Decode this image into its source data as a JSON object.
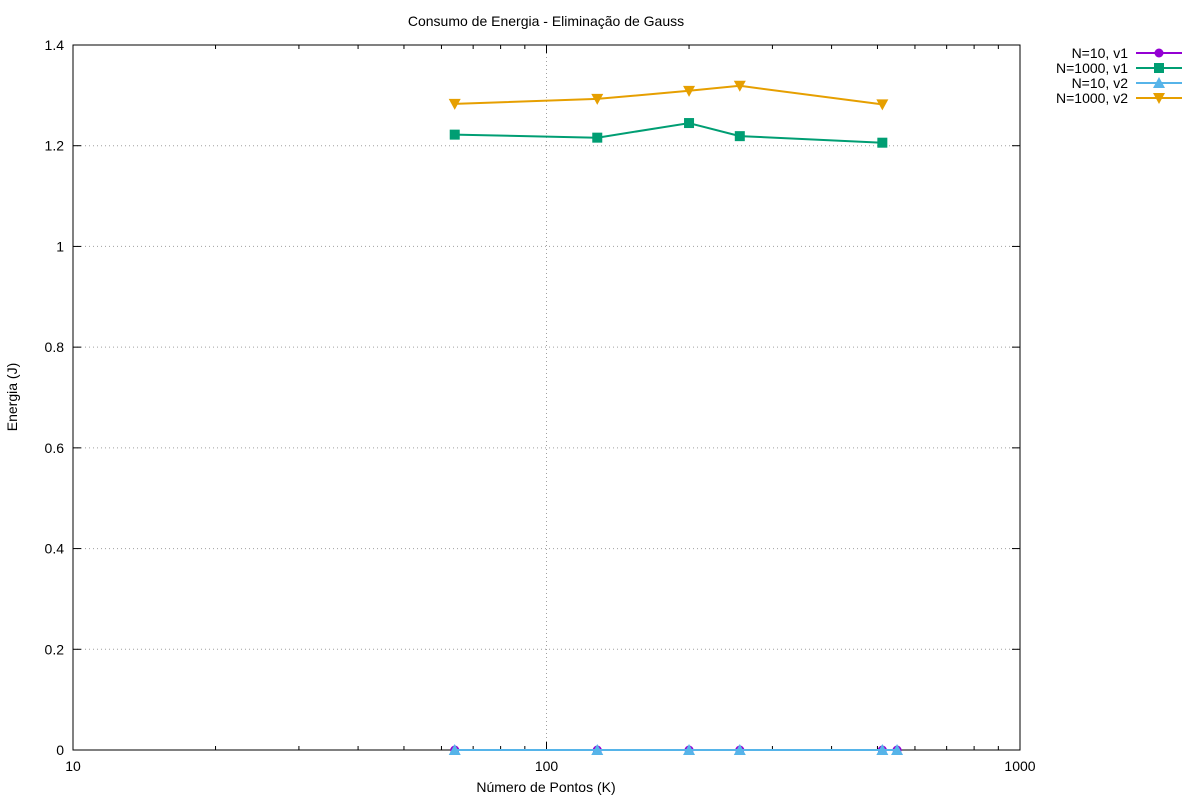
{
  "chart_data": {
    "type": "line",
    "title": "Consumo de Energia - Eliminação de Gauss",
    "xlabel": "Número de Pontos (K)",
    "ylabel": "Energia (J)",
    "xscale": "log",
    "xlim": [
      10,
      1000
    ],
    "ylim": [
      0,
      1.4
    ],
    "x_ticks": [
      10,
      100,
      1000
    ],
    "x_tick_labels": [
      "10",
      "100",
      "1000"
    ],
    "y_ticks": [
      0,
      0.2,
      0.4,
      0.6,
      0.8,
      1.0,
      1.2,
      1.4
    ],
    "y_tick_labels": [
      "0",
      "0.2",
      "0.4",
      "0.6",
      "0.8",
      "1",
      "1.2",
      "1.4"
    ],
    "grid": true,
    "legend_position": "outside-top-right",
    "series": [
      {
        "name": "N=10, v1",
        "color": "#9400d3",
        "marker": "circle",
        "x": [
          64,
          128,
          200,
          256,
          512,
          550
        ],
        "y": [
          0,
          0,
          0,
          0,
          0,
          0
        ]
      },
      {
        "name": "N=1000, v1",
        "color": "#009e73",
        "marker": "square",
        "x": [
          64,
          128,
          200,
          256,
          512
        ],
        "y": [
          1.222,
          1.216,
          1.245,
          1.219,
          1.206
        ]
      },
      {
        "name": "N=10, v2",
        "color": "#56b4e9",
        "marker": "triangle-up",
        "x": [
          64,
          128,
          200,
          256,
          512,
          550
        ],
        "y": [
          0,
          0,
          0,
          0,
          0,
          0
        ]
      },
      {
        "name": "N=1000, v2",
        "color": "#e69f00",
        "marker": "triangle-down",
        "x": [
          64,
          128,
          200,
          256,
          512
        ],
        "y": [
          1.283,
          1.293,
          1.309,
          1.319,
          1.282
        ]
      }
    ]
  }
}
